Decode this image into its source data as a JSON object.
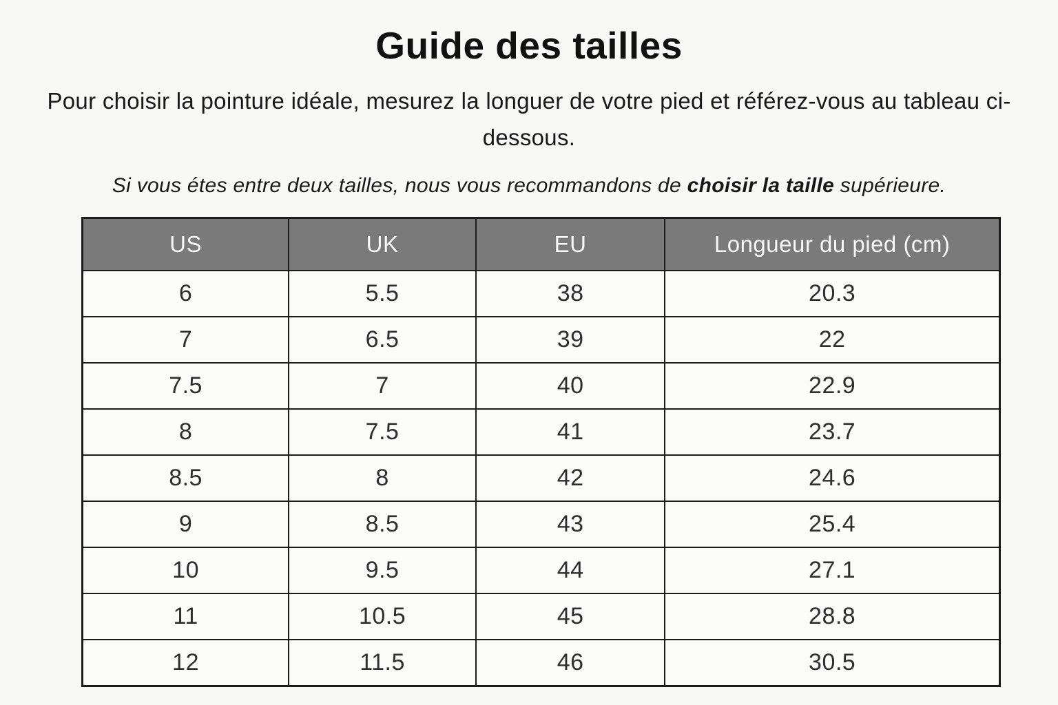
{
  "page": {
    "title": "Guide des tailles",
    "subtitle": "Pour choisir la pointure idéale, mesurez la longuer de votre pied et référez-vous au tableau ci-dessous.",
    "note": {
      "prefix": "Si vous étes entre deux tailles, nous vous recommandons de ",
      "bold": "choisir la taille",
      "suffix": " supérieure."
    }
  },
  "table": {
    "headers": [
      "US",
      "UK",
      "EU",
      "Longueur du pied (cm)"
    ],
    "rows": [
      [
        "6",
        "5.5",
        "38",
        "20.3"
      ],
      [
        "7",
        "6.5",
        "39",
        "22"
      ],
      [
        "7.5",
        "7",
        "40",
        "22.9"
      ],
      [
        "8",
        "7.5",
        "41",
        "23.7"
      ],
      [
        "8.5",
        "8",
        "42",
        "24.6"
      ],
      [
        "9",
        "8.5",
        "43",
        "25.4"
      ],
      [
        "10",
        "9.5",
        "44",
        "27.1"
      ],
      [
        "11",
        "10.5",
        "45",
        "28.8"
      ],
      [
        "12",
        "11.5",
        "46",
        "30.5"
      ]
    ]
  },
  "colors": {
    "page_background": "#f8f8f6",
    "header_background": "#7a7a7a",
    "header_text": "#f7f7f7",
    "cell_background": "#fbfbf9",
    "border": "#1c1c1c",
    "body_text": "#2e2e2e"
  }
}
